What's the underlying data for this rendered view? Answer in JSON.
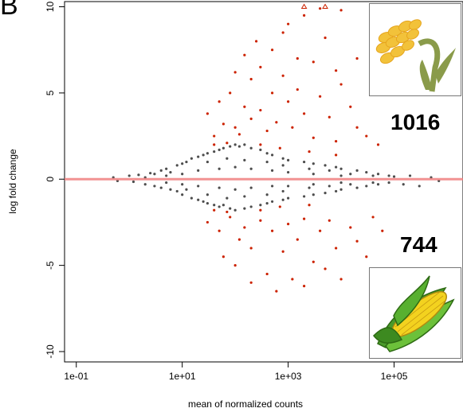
{
  "panel_label": "B",
  "counts": {
    "up": "1016",
    "down": "744"
  },
  "icons": {
    "top": "rice-plant-icon",
    "bottom": "corn-cob-icon"
  },
  "colors": {
    "nonsig": "#4d4d4d",
    "sig": "#cc2200",
    "zero_line": "#f08080"
  },
  "chart_data": {
    "type": "scatter",
    "title": "",
    "xlabel": "mean of normalized counts",
    "ylabel": "log fold change",
    "x_scale": "log10",
    "xlim": [
      0.06,
      2000000
    ],
    "ylim": [
      -10.6,
      10.3
    ],
    "xticks": [
      {
        "value": 0.1,
        "label": "1e-01"
      },
      {
        "value": 10,
        "label": "1e+01"
      },
      {
        "value": 1000,
        "label": "1e+03"
      },
      {
        "value": 100000,
        "label": "1e+05"
      }
    ],
    "yticks": [
      {
        "value": -10,
        "label": "-10"
      },
      {
        "value": -5,
        "label": "-5"
      },
      {
        "value": 0,
        "label": "0"
      },
      {
        "value": 5,
        "label": "5"
      },
      {
        "value": 10,
        "label": "10"
      }
    ],
    "zero_line": 0,
    "series": [
      {
        "name": "",
        "color": "#4d4d4d",
        "points": [
          [
            0.5,
            0.1
          ],
          [
            0.6,
            -0.1
          ],
          [
            1,
            0.2
          ],
          [
            1.2,
            -0.15
          ],
          [
            1.5,
            0.25
          ],
          [
            2,
            -0.3
          ],
          [
            2.5,
            0.35
          ],
          [
            3,
            -0.4
          ],
          [
            3,
            0.3
          ],
          [
            4,
            0.5
          ],
          [
            4,
            -0.5
          ],
          [
            5,
            0.6
          ],
          [
            6,
            -0.6
          ],
          [
            6,
            0.4
          ],
          [
            8,
            0.8
          ],
          [
            8,
            -0.7
          ],
          [
            10,
            0.9
          ],
          [
            10,
            -0.9
          ],
          [
            12,
            1.0
          ],
          [
            12,
            -0.6
          ],
          [
            15,
            1.2
          ],
          [
            15,
            -1.1
          ],
          [
            20,
            1.3
          ],
          [
            20,
            -1.2
          ],
          [
            25,
            1.4
          ],
          [
            25,
            -1.3
          ],
          [
            30,
            1.5
          ],
          [
            30,
            -1.4
          ],
          [
            40,
            1.6
          ],
          [
            40,
            -1.5
          ],
          [
            50,
            1.7
          ],
          [
            50,
            -1.6
          ],
          [
            60,
            1.8
          ],
          [
            60,
            -1.5
          ],
          [
            80,
            1.9
          ],
          [
            80,
            -1.7
          ],
          [
            100,
            2.0
          ],
          [
            100,
            -1.8
          ],
          [
            120,
            1.9
          ],
          [
            150,
            2.0
          ],
          [
            150,
            -1.7
          ],
          [
            200,
            1.8
          ],
          [
            200,
            -1.6
          ],
          [
            300,
            1.7
          ],
          [
            300,
            -1.5
          ],
          [
            400,
            1.5
          ],
          [
            400,
            -1.4
          ],
          [
            500,
            1.4
          ],
          [
            500,
            -1.3
          ],
          [
            800,
            1.2
          ],
          [
            800,
            -1.2
          ],
          [
            1000,
            1.1
          ],
          [
            1000,
            -1.1
          ],
          [
            2000,
            1.0
          ],
          [
            2000,
            -1.0
          ],
          [
            3000,
            0.9
          ],
          [
            3000,
            -0.9
          ],
          [
            5000,
            0.8
          ],
          [
            5000,
            -0.8
          ],
          [
            8000,
            0.7
          ],
          [
            8000,
            -0.7
          ],
          [
            10000,
            0.6
          ],
          [
            10000,
            -0.6
          ],
          [
            20000,
            0.5
          ],
          [
            20000,
            -0.5
          ],
          [
            30000,
            0.4
          ],
          [
            30000,
            -0.4
          ],
          [
            50000,
            0.3
          ],
          [
            50000,
            -0.3
          ],
          [
            80000,
            0.2
          ],
          [
            80000,
            -0.2
          ],
          [
            100000,
            0.15
          ],
          [
            150000,
            -0.3
          ],
          [
            200000,
            0.2
          ],
          [
            300000,
            -0.4
          ],
          [
            500000,
            0.1
          ],
          [
            700000,
            -0.1
          ],
          [
            10,
            0.3
          ],
          [
            10,
            -0.3
          ],
          [
            20,
            0.5
          ],
          [
            20,
            -0.4
          ],
          [
            50,
            0.6
          ],
          [
            50,
            -0.5
          ],
          [
            100,
            0.7
          ],
          [
            100,
            -0.6
          ],
          [
            200,
            0.6
          ],
          [
            200,
            -0.5
          ],
          [
            500,
            0.5
          ],
          [
            500,
            -0.4
          ],
          [
            1000,
            0.4
          ],
          [
            1000,
            -0.4
          ],
          [
            3000,
            0.3
          ],
          [
            3000,
            -0.3
          ],
          [
            10000,
            0.2
          ],
          [
            10000,
            -0.2
          ],
          [
            5,
            0.2
          ],
          [
            5,
            -0.2
          ],
          [
            2,
            0.1
          ],
          [
            30,
            1.0
          ],
          [
            30,
            -0.9
          ],
          [
            70,
            1.2
          ],
          [
            70,
            -1.1
          ],
          [
            150,
            1.1
          ],
          [
            150,
            -1.0
          ],
          [
            400,
            1.0
          ],
          [
            400,
            -0.9
          ],
          [
            800,
            0.8
          ],
          [
            800,
            -0.7
          ],
          [
            2500,
            0.6
          ],
          [
            2500,
            -0.5
          ],
          [
            6000,
            0.5
          ],
          [
            6000,
            -0.4
          ],
          [
            15000,
            0.3
          ],
          [
            15000,
            -0.3
          ],
          [
            40000,
            0.2
          ],
          [
            40000,
            -0.2
          ]
        ]
      },
      {
        "name": "",
        "color": "#cc2200",
        "points": [
          [
            30,
            3.8
          ],
          [
            40,
            2.5
          ],
          [
            50,
            4.5
          ],
          [
            60,
            3.2
          ],
          [
            80,
            5.0
          ],
          [
            100,
            6.2
          ],
          [
            100,
            3.0
          ],
          [
            120,
            2.6
          ],
          [
            150,
            7.2
          ],
          [
            150,
            4.2
          ],
          [
            200,
            5.8
          ],
          [
            200,
            3.5
          ],
          [
            250,
            8.0
          ],
          [
            300,
            6.5
          ],
          [
            300,
            4.0
          ],
          [
            400,
            2.8
          ],
          [
            500,
            7.5
          ],
          [
            500,
            5.0
          ],
          [
            600,
            3.3
          ],
          [
            800,
            8.5
          ],
          [
            800,
            6.0
          ],
          [
            1000,
            9.0
          ],
          [
            1000,
            4.5
          ],
          [
            1200,
            3.0
          ],
          [
            1500,
            7.0
          ],
          [
            1500,
            5.2
          ],
          [
            2000,
            9.5
          ],
          [
            2000,
            3.8
          ],
          [
            3000,
            6.8
          ],
          [
            3000,
            2.4
          ],
          [
            4000,
            9.9
          ],
          [
            4000,
            4.8
          ],
          [
            5000,
            8.2
          ],
          [
            6000,
            3.6
          ],
          [
            8000,
            6.3
          ],
          [
            8000,
            2.2
          ],
          [
            10000,
            9.8
          ],
          [
            10000,
            5.5
          ],
          [
            15000,
            4.2
          ],
          [
            20000,
            7.0
          ],
          [
            20000,
            3.0
          ],
          [
            30000,
            2.5
          ],
          [
            40000,
            5.8
          ],
          [
            50000,
            2.0
          ],
          [
            30,
            -2.5
          ],
          [
            50,
            -3.0
          ],
          [
            60,
            -4.5
          ],
          [
            80,
            -2.2
          ],
          [
            100,
            -5.0
          ],
          [
            120,
            -3.5
          ],
          [
            150,
            -2.8
          ],
          [
            200,
            -6.0
          ],
          [
            200,
            -4.0
          ],
          [
            300,
            -2.4
          ],
          [
            400,
            -5.5
          ],
          [
            500,
            -3.0
          ],
          [
            600,
            -6.5
          ],
          [
            800,
            -4.2
          ],
          [
            1000,
            -2.6
          ],
          [
            1200,
            -5.8
          ],
          [
            1500,
            -3.5
          ],
          [
            2000,
            -6.2
          ],
          [
            2000,
            -2.3
          ],
          [
            3000,
            -4.8
          ],
          [
            4000,
            -3.0
          ],
          [
            5000,
            -5.2
          ],
          [
            6000,
            -2.4
          ],
          [
            8000,
            -4.0
          ],
          [
            10000,
            -5.8
          ],
          [
            15000,
            -2.8
          ],
          [
            20000,
            -3.6
          ],
          [
            30000,
            -4.5
          ],
          [
            40000,
            -2.2
          ],
          [
            60000,
            -3.0
          ],
          [
            40,
            -1.8
          ],
          [
            70,
            -1.9
          ],
          [
            300,
            -1.8
          ],
          [
            700,
            -1.6
          ],
          [
            2500,
            -1.5
          ],
          [
            40,
            2.0
          ],
          [
            70,
            2.1
          ],
          [
            300,
            2.0
          ],
          [
            700,
            1.8
          ],
          [
            2500,
            1.6
          ],
          [
            8000,
            1.4
          ]
        ]
      },
      {
        "name": "",
        "color": "#cc2200",
        "marker": "triangle",
        "points": [
          [
            2000,
            10.0
          ],
          [
            5000,
            10.0
          ]
        ]
      }
    ]
  }
}
